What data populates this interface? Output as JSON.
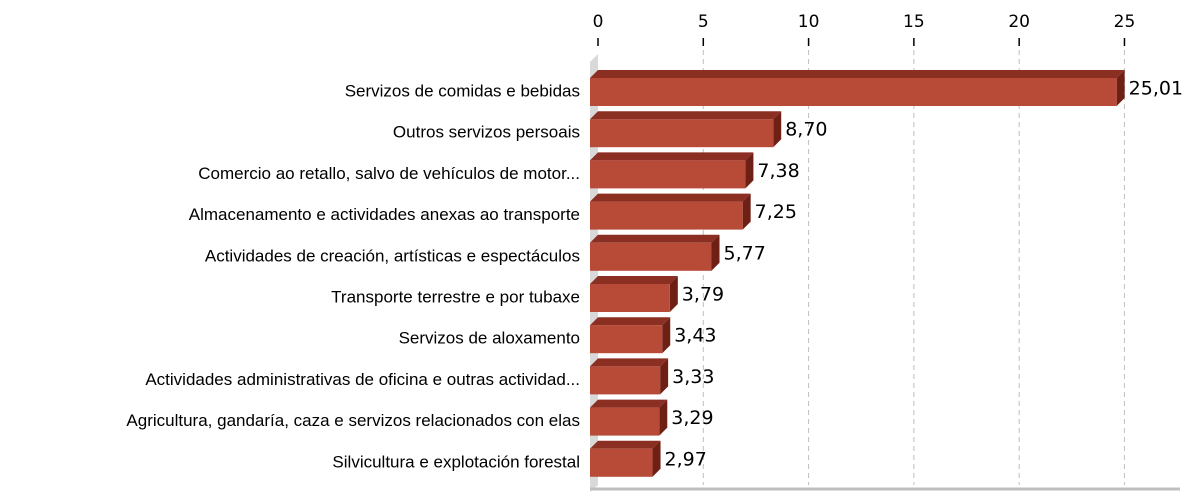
{
  "chart_data": {
    "type": "bar",
    "orientation": "horizontal",
    "categories": [
      "Servizos de comidas e bebidas",
      "Outros servizos persoais",
      "Comercio ao retallo, salvo de vehículos de motor...",
      "Almacenamento e actividades anexas ao transporte",
      "Actividades de creación, artísticas e espectáculos",
      "Transporte terrestre e por tubaxe",
      "Servizos de aloxamento",
      "Actividades administrativas de oficina e outras actividad...",
      "Agricultura, gandaría, caza e servizos relacionados con elas",
      "Silvicultura e explotación forestal"
    ],
    "values": [
      25.01,
      8.7,
      7.38,
      7.25,
      5.77,
      3.79,
      3.43,
      3.33,
      3.29,
      2.97
    ],
    "value_labels": [
      "25,01",
      "8,70",
      "7,38",
      "7,25",
      "5,77",
      "3,79",
      "3,43",
      "3,33",
      "3,29",
      "2,97"
    ],
    "color": "#b84a38",
    "xlim": [
      0,
      27.4
    ],
    "xticks": [
      0,
      5,
      10,
      15,
      20,
      25
    ],
    "grid": true
  }
}
